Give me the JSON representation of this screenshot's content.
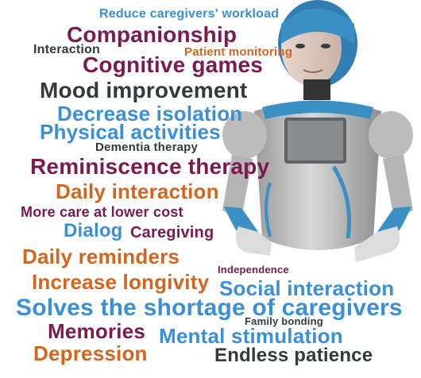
{
  "words": [
    {
      "text": "Reduce caregivers' workload",
      "color": "#3b8fd6"
    },
    {
      "text": "Companionship",
      "color": "#7a1a4e"
    },
    {
      "text": "Interaction",
      "color": "#333a3d"
    },
    {
      "text": "Patient monitoring",
      "color": "#d2651f"
    },
    {
      "text": "Cognitive games",
      "color": "#7a1a4e"
    },
    {
      "text": "Mood improvement",
      "color": "#333a3d"
    },
    {
      "text": "Decrease isolation",
      "color": "#3b8fd6"
    },
    {
      "text": "Physical activities",
      "color": "#3b8fd6"
    },
    {
      "text": "Dementia therapy",
      "color": "#333a3d"
    },
    {
      "text": "Reminiscence therapy",
      "color": "#7a1a4e"
    },
    {
      "text": "Daily interaction",
      "color": "#d2651f"
    },
    {
      "text": "More care at lower cost",
      "color": "#7a1a4e"
    },
    {
      "text": "Dialog",
      "color": "#3b8fd6"
    },
    {
      "text": "Caregiving",
      "color": "#7a1a4e"
    },
    {
      "text": "Daily reminders",
      "color": "#d2651f"
    },
    {
      "text": "Independence",
      "color": "#7a1a4e"
    },
    {
      "text": "Increase longivity",
      "color": "#d2651f"
    },
    {
      "text": "Social interaction",
      "color": "#3b8fd6"
    },
    {
      "text": "Solves the shortage of caregivers",
      "color": "#3b8fd6"
    },
    {
      "text": "Family bonding",
      "color": "#333a3d"
    },
    {
      "text": "Memories",
      "color": "#7a1a4e"
    },
    {
      "text": "Mental stimulation",
      "color": "#3b8fd6"
    },
    {
      "text": "Depression",
      "color": "#d2651f"
    },
    {
      "text": "Endless patience",
      "color": "#333a3d"
    }
  ],
  "robot": {
    "accent_color": "#3a8fc4",
    "body_color": "#c9c8c8",
    "screen_color": "#8a8d90"
  }
}
